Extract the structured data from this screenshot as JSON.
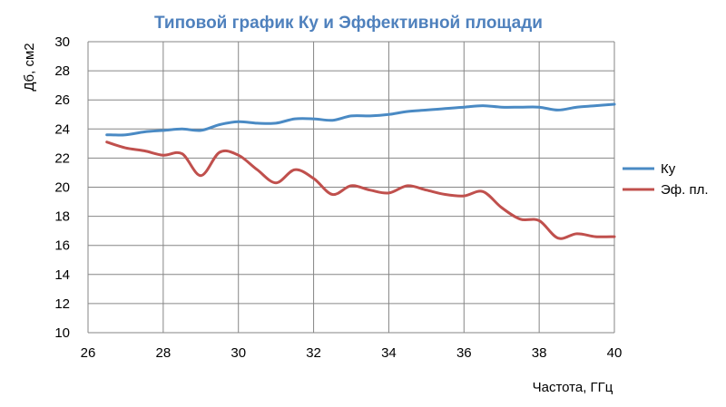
{
  "chart_data": {
    "type": "line",
    "title": "Типовой график Ку и Эффективной площади",
    "xlabel": "Частота, ГГц",
    "ylabel": "Дб, см2",
    "xlim": [
      26,
      40
    ],
    "ylim": [
      10,
      30
    ],
    "xticks": [
      26,
      28,
      30,
      32,
      34,
      36,
      38,
      40
    ],
    "yticks": [
      10,
      12,
      14,
      16,
      18,
      20,
      22,
      24,
      26,
      28,
      30
    ],
    "grid": true,
    "legend": "right",
    "title_color": "#4f81bd",
    "series": [
      {
        "name": "Ку",
        "color": "#4a8ac4",
        "x": [
          26.5,
          27.0,
          27.5,
          28.0,
          28.5,
          29.0,
          29.5,
          30.0,
          30.5,
          31.0,
          31.5,
          32.0,
          32.5,
          33.0,
          33.5,
          34.0,
          34.5,
          35.0,
          35.5,
          36.0,
          36.5,
          37.0,
          37.5,
          38.0,
          38.5,
          39.0,
          39.5,
          40.0
        ],
        "y": [
          23.6,
          23.6,
          23.8,
          23.9,
          24.0,
          23.9,
          24.3,
          24.5,
          24.4,
          24.4,
          24.7,
          24.7,
          24.6,
          24.9,
          24.9,
          25.0,
          25.2,
          25.3,
          25.4,
          25.5,
          25.6,
          25.5,
          25.5,
          25.5,
          25.3,
          25.5,
          25.6,
          25.7
        ]
      },
      {
        "name": "Эф. пл.",
        "color": "#c0504d",
        "x": [
          26.5,
          27.0,
          27.5,
          28.0,
          28.5,
          29.0,
          29.5,
          30.0,
          30.5,
          31.0,
          31.5,
          32.0,
          32.5,
          33.0,
          33.5,
          34.0,
          34.5,
          35.0,
          35.5,
          36.0,
          36.5,
          37.0,
          37.5,
          38.0,
          38.5,
          39.0,
          39.5,
          40.0
        ],
        "y": [
          23.1,
          22.7,
          22.5,
          22.2,
          22.3,
          20.8,
          22.4,
          22.2,
          21.2,
          20.3,
          21.2,
          20.6,
          19.5,
          20.1,
          19.8,
          19.6,
          20.1,
          19.8,
          19.5,
          19.4,
          19.7,
          18.6,
          17.8,
          17.7,
          16.5,
          16.8,
          16.6,
          16.6
        ]
      }
    ]
  }
}
